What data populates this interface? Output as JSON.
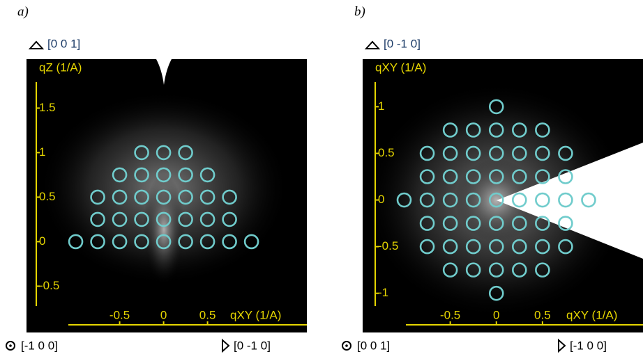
{
  "chart_data": [
    {
      "type": "scatter",
      "title": "a)",
      "up_direction": "[0 0 1]",
      "ylabel": "qZ (1/A)",
      "xlabel": "qXY (1/A)",
      "left_direction": "[-1 0 0]",
      "right_direction": "[0 -1 0]",
      "color": "#70cccc",
      "axis_color": "#e6d600",
      "xlim": [
        -1.56,
        1.63
      ],
      "ylim": [
        -1.02,
        2.05
      ],
      "xticks": [
        -0.5,
        0,
        0.5
      ],
      "yticks": [
        -0.5,
        0,
        0.5,
        1,
        1.5
      ],
      "x": [
        -1,
        -0.75,
        -0.5,
        -0.25,
        0,
        0.25,
        0.5,
        0.75,
        1,
        -0.75,
        -0.5,
        -0.25,
        0,
        0.25,
        0.5,
        0.75,
        -0.75,
        -0.5,
        -0.25,
        0,
        0.25,
        0.5,
        0.75,
        -0.5,
        -0.25,
        0,
        0.25,
        0.5,
        -0.25,
        0,
        0.25
      ],
      "y": [
        0,
        0,
        0,
        0,
        0,
        0,
        0,
        0,
        0,
        0.25,
        0.25,
        0.25,
        0.25,
        0.25,
        0.25,
        0.25,
        0.5,
        0.5,
        0.5,
        0.5,
        0.5,
        0.5,
        0.5,
        0.75,
        0.75,
        0.75,
        0.75,
        0.75,
        1,
        1,
        1
      ]
    },
    {
      "type": "scatter",
      "title": "b)",
      "up_direction": "[0 -1 0]",
      "ylabel": "qXY (1/A)",
      "xlabel": "qXY (1/A)",
      "left_direction": "[0 0 1]",
      "right_direction": "[-1 0 0]",
      "color": "#70cccc",
      "axis_color": "#e6d600",
      "xlim": [
        -1.45,
        1.59
      ],
      "ylim": [
        -1.42,
        1.51
      ],
      "xticks": [
        -0.5,
        0,
        0.5
      ],
      "yticks": [
        -1,
        -0.5,
        0,
        0.5,
        1
      ],
      "x": [
        0,
        -0.5,
        -0.25,
        0,
        0.25,
        0.5,
        -0.75,
        -0.5,
        -0.25,
        0,
        0.25,
        0.5,
        0.75,
        -0.75,
        -0.5,
        -0.25,
        0,
        0.25,
        0.5,
        0.75,
        -1,
        -0.75,
        -0.5,
        -0.25,
        0,
        0.25,
        0.5,
        0.75,
        1,
        -0.75,
        -0.5,
        -0.25,
        0,
        0.25,
        0.5,
        0.75,
        -0.75,
        -0.5,
        -0.25,
        0,
        0.25,
        0.5,
        0.75,
        -0.5,
        -0.25,
        0,
        0.25,
        0.5,
        0
      ],
      "y": [
        1,
        0.75,
        0.75,
        0.75,
        0.75,
        0.75,
        0.5,
        0.5,
        0.5,
        0.5,
        0.5,
        0.5,
        0.5,
        0.25,
        0.25,
        0.25,
        0.25,
        0.25,
        0.25,
        0.25,
        0,
        0,
        0,
        0,
        0,
        0,
        0,
        0,
        0,
        -0.25,
        -0.25,
        -0.25,
        -0.25,
        -0.25,
        -0.25,
        -0.25,
        -0.5,
        -0.5,
        -0.5,
        -0.5,
        -0.5,
        -0.5,
        -0.5,
        -0.75,
        -0.75,
        -0.75,
        -0.75,
        -0.75,
        -1
      ]
    }
  ]
}
